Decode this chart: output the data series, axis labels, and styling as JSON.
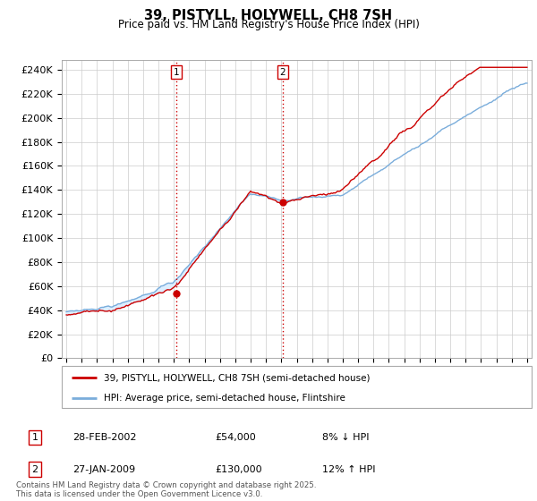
{
  "title": "39, PISTYLL, HOLYWELL, CH8 7SH",
  "subtitle": "Price paid vs. HM Land Registry's House Price Index (HPI)",
  "ylabel_ticks": [
    "£0",
    "£20K",
    "£40K",
    "£60K",
    "£80K",
    "£100K",
    "£120K",
    "£140K",
    "£160K",
    "£180K",
    "£200K",
    "£220K",
    "£240K"
  ],
  "ytick_values": [
    0,
    20000,
    40000,
    60000,
    80000,
    100000,
    120000,
    140000,
    160000,
    180000,
    200000,
    220000,
    240000
  ],
  "ylim": [
    0,
    248000
  ],
  "xlim_start": 1994.7,
  "xlim_end": 2025.3,
  "purchase1_x": 2002.15,
  "purchase1_y": 54000,
  "purchase2_x": 2009.08,
  "purchase2_y": 130000,
  "line1_color": "#cc0000",
  "line2_color": "#7aaddb",
  "fill_color": "#ddeeff",
  "legend_label1": "39, PISTYLL, HOLYWELL, CH8 7SH (semi-detached house)",
  "legend_label2": "HPI: Average price, semi-detached house, Flintshire",
  "footer": "Contains HM Land Registry data © Crown copyright and database right 2025.\nThis data is licensed under the Open Government Licence v3.0.",
  "grid_color": "#cccccc",
  "background_color": "#ffffff",
  "vline_color": "#cc0000"
}
